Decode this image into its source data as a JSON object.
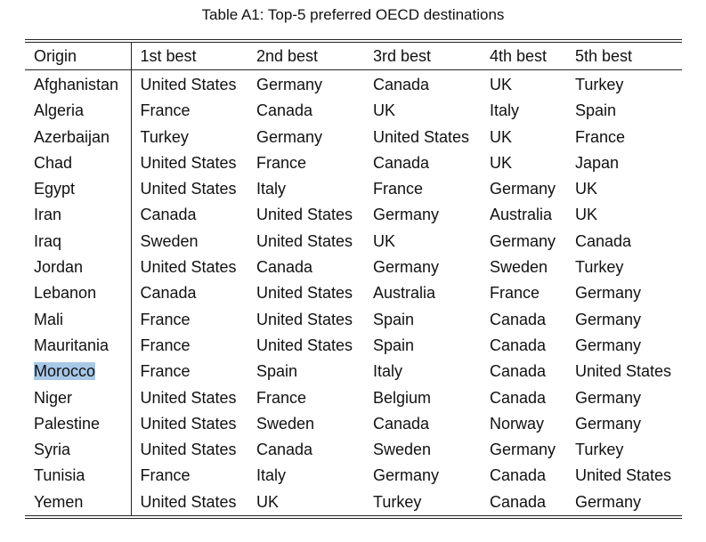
{
  "caption": "Table A1: Top-5 preferred OECD destinations",
  "headers": [
    "Origin",
    "1st best",
    "2nd best",
    "3rd best",
    "4th best",
    "5th best"
  ],
  "rows": [
    [
      "Afghanistan",
      "United States",
      "Germany",
      "Canada",
      "UK",
      "Turkey"
    ],
    [
      "Algeria",
      "France",
      "Canada",
      "UK",
      "Italy",
      "Spain"
    ],
    [
      "Azerbaijan",
      "Turkey",
      "Germany",
      "United States",
      "UK",
      "France"
    ],
    [
      "Chad",
      "United States",
      "France",
      "Canada",
      "UK",
      "Japan"
    ],
    [
      "Egypt",
      "United States",
      "Italy",
      "France",
      "Germany",
      "UK"
    ],
    [
      "Iran",
      "Canada",
      "United States",
      "Germany",
      "Australia",
      "UK"
    ],
    [
      "Iraq",
      "Sweden",
      "United States",
      "UK",
      "Germany",
      "Canada"
    ],
    [
      "Jordan",
      "United States",
      "Canada",
      "Germany",
      "Sweden",
      "Turkey"
    ],
    [
      "Lebanon",
      "Canada",
      "United States",
      "Australia",
      "France",
      "Germany"
    ],
    [
      "Mali",
      "France",
      "United States",
      "Spain",
      "Canada",
      "Germany"
    ],
    [
      "Mauritania",
      "France",
      "United States",
      "Spain",
      "Canada",
      "Germany"
    ],
    [
      "Morocco",
      "France",
      "Spain",
      "Italy",
      "Canada",
      "United States"
    ],
    [
      "Niger",
      "United States",
      "France",
      "Belgium",
      "Canada",
      "Germany"
    ],
    [
      "Palestine",
      "United States",
      "Sweden",
      "Canada",
      "Norway",
      "Germany"
    ],
    [
      "Syria",
      "United States",
      "Canada",
      "Sweden",
      "Germany",
      "Turkey"
    ],
    [
      "Tunisia",
      "France",
      "Italy",
      "Germany",
      "Canada",
      "United States"
    ],
    [
      "Yemen",
      "United States",
      "UK",
      "Turkey",
      "Canada",
      "Germany"
    ]
  ],
  "selection": {
    "row": 11,
    "col": 0,
    "color": "#a8c8e8"
  }
}
